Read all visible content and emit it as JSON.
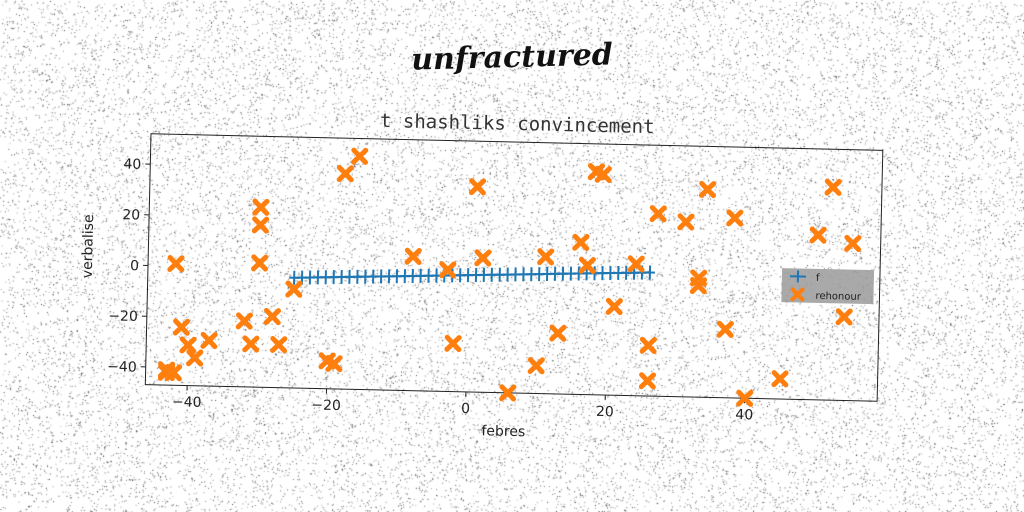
{
  "suptitle": "unfractured",
  "chart_data": {
    "type": "scatter",
    "title": "t shashliks convincement",
    "xlabel": "febres",
    "ylabel": "verbalise",
    "xlim": [
      -46,
      59
    ],
    "ylim": [
      -47,
      52
    ],
    "xticks": [
      -40,
      -20,
      0,
      20,
      40
    ],
    "yticks": [
      -40,
      -20,
      0,
      20,
      40
    ],
    "grid": false,
    "legend_position": "center-right",
    "series": [
      {
        "name": "f",
        "kind": "line-markers",
        "marker": "+",
        "color": "#1f77b4",
        "x": [
          -25.0,
          -23.87,
          -22.73,
          -21.6,
          -20.47,
          -19.33,
          -18.2,
          -17.07,
          -15.93,
          -14.8,
          -13.67,
          -12.53,
          -11.4,
          -10.27,
          -9.13,
          -8.0,
          -6.87,
          -5.73,
          -4.6,
          -3.47,
          -2.33,
          -1.2,
          -0.07,
          1.07,
          2.2,
          3.33,
          4.47,
          5.6,
          6.73,
          7.87,
          9.0,
          10.13,
          11.27,
          12.4,
          13.53,
          14.67,
          15.8,
          16.93,
          18.07,
          19.2,
          20.33,
          21.47,
          22.6,
          23.73,
          24.87,
          26.0
        ],
        "y": [
          -3.5,
          -3.38,
          -3.27,
          -3.15,
          -3.03,
          -2.92,
          -2.8,
          -2.68,
          -2.57,
          -2.45,
          -2.33,
          -2.22,
          -2.1,
          -1.98,
          -1.87,
          -1.75,
          -1.63,
          -1.52,
          -1.4,
          -1.28,
          -1.17,
          -1.05,
          -0.93,
          -0.82,
          -0.7,
          -0.58,
          -0.47,
          -0.35,
          -0.23,
          -0.12,
          0.0,
          0.12,
          0.23,
          0.35,
          0.47,
          0.58,
          0.7,
          0.82,
          0.93,
          1.05,
          1.17,
          1.28,
          1.4,
          1.52,
          1.63,
          1.75
        ]
      },
      {
        "name": "rehonour",
        "kind": "scatter",
        "marker": "X",
        "color": "#ff7f0e",
        "x": [
          -43,
          -43,
          -42,
          -42,
          -41,
          -40,
          -39,
          -37,
          -32,
          -31,
          -30,
          -30,
          -30,
          -28,
          -27,
          -25,
          -20,
          -19,
          -18,
          -16,
          -8,
          -3,
          -2,
          1,
          2,
          6,
          10,
          11,
          13,
          16,
          17,
          18,
          18,
          19,
          21,
          24,
          26,
          26,
          27,
          31,
          33,
          33,
          34,
          37,
          38,
          40,
          45,
          50,
          52,
          54,
          55
        ],
        "y": [
          -41,
          -42,
          1,
          -42,
          -24,
          -31,
          -36,
          -29,
          -21,
          -30,
          2,
          17,
          24,
          -19,
          -30,
          -8,
          -36,
          -37,
          38,
          45,
          6,
          1,
          -28,
          34,
          6,
          -47,
          -36,
          7,
          -23,
          13,
          4,
          41,
          41,
          40,
          -12,
          5,
          -27,
          -41,
          25,
          22,
          -3,
          0,
          35,
          -20,
          24,
          -47,
          -39,
          18,
          37,
          -14,
          15
        ]
      }
    ]
  },
  "colors": {
    "series1": "#1f77b4",
    "series2": "#ff7f0e",
    "legend_bg": "#9a9a9a"
  }
}
